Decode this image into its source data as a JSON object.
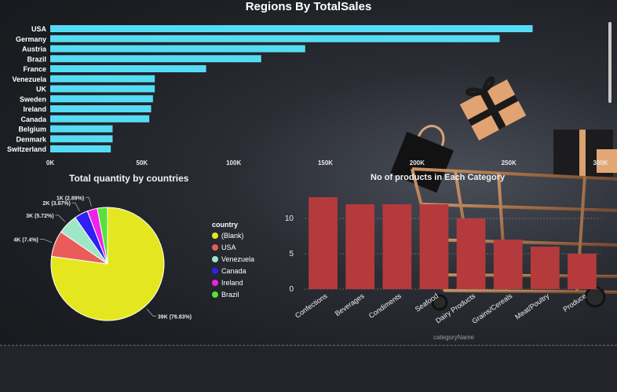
{
  "charts": [
    {
      "type": "bar",
      "orientation": "horizontal",
      "title": "Regions By TotalSales",
      "categories": [
        "USA",
        "Germany",
        "Austria",
        "Brazil",
        "France",
        "Venezuela",
        "UK",
        "Sweden",
        "Ireland",
        "Canada",
        "Belgium",
        "Denmark",
        "Switzerland"
      ],
      "values": [
        263000,
        245000,
        139000,
        115000,
        85000,
        57000,
        57000,
        56000,
        55000,
        54000,
        34000,
        34000,
        33000
      ],
      "xticks": [
        "0K",
        "50K",
        "100K",
        "150K",
        "200K",
        "250K",
        "300K"
      ],
      "xlim": [
        0,
        300000
      ],
      "color": "#55dcf5"
    },
    {
      "type": "pie",
      "title": "Total quantity by countries",
      "legend_title": "country",
      "legend_position": "right",
      "slices": [
        {
          "name": "(Blank)",
          "value": 76.83,
          "label": "39K (76.83%)",
          "color": "#e4e71f"
        },
        {
          "name": "USA",
          "value": 7.4,
          "label": "4K (7.4%)",
          "color": "#ea5b5b"
        },
        {
          "name": "Venezuela",
          "value": 5.72,
          "label": "3K (5.72%)",
          "color": "#9ee6c8"
        },
        {
          "name": "Canada",
          "value": 3.87,
          "label": "2K (3.87%)",
          "color": "#2f1ff0"
        },
        {
          "name": "Ireland",
          "value": 2.89,
          "label": "1K (2.89%)",
          "color": "#ee22e8"
        },
        {
          "name": "Brazil",
          "value": 2.89,
          "label": "",
          "color": "#58e13a"
        }
      ]
    },
    {
      "type": "bar",
      "title": "No of products in Each Category",
      "xlabel": "categoryName",
      "ylabel": "",
      "categories": [
        "Confections",
        "Beverages",
        "Condiments",
        "Seafood",
        "Dairy Products",
        "Grains/Cereals",
        "Meat/Poultry",
        "Produce"
      ],
      "values": [
        13,
        12,
        12,
        12,
        10,
        7,
        6,
        5
      ],
      "yticks": [
        "0",
        "5",
        "10"
      ],
      "ylim": [
        0,
        14
      ],
      "color": "#b53a3c"
    }
  ]
}
